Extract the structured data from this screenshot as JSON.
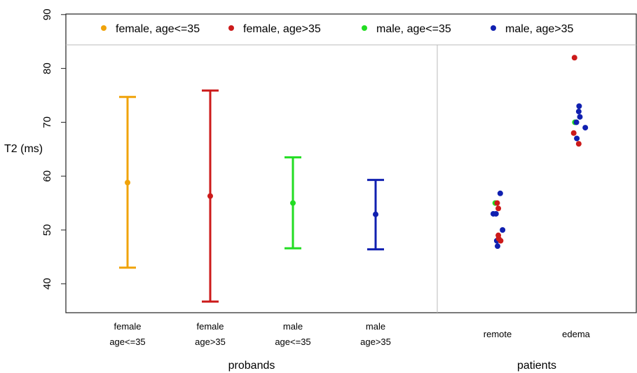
{
  "chart_data": {
    "type": "scatter",
    "ylabel": "T2 (ms)",
    "ylim": [
      36,
      90
    ],
    "yticks": [
      40,
      50,
      60,
      70,
      80,
      90
    ],
    "legend_position": "top",
    "groups": [
      {
        "name": "probands",
        "categories": [
          {
            "line1": "female",
            "line2": "age<=35"
          },
          {
            "line1": "female",
            "line2": "age>35"
          },
          {
            "line1": "male",
            "line2": "age<=35"
          },
          {
            "line1": "male",
            "line2": "age>35"
          }
        ]
      },
      {
        "name": "patients",
        "categories": [
          {
            "line1": "remote",
            "line2": ""
          },
          {
            "line1": "edema",
            "line2": ""
          }
        ]
      }
    ],
    "legend": [
      {
        "label": "female, age<=35",
        "color": "#f0a30a"
      },
      {
        "label": "female, age>35",
        "color": "#cc1a1a"
      },
      {
        "label": "male, age<=35",
        "color": "#22dd22"
      },
      {
        "label": "male, age>35",
        "color": "#1020b0"
      }
    ],
    "errorbars": [
      {
        "category": "female age<=35",
        "series": "female, age<=35",
        "mean": 58.8,
        "low": 43.0,
        "high": 74.7
      },
      {
        "category": "female age>35",
        "series": "female, age>35",
        "mean": 56.3,
        "low": 36.7,
        "high": 75.9
      },
      {
        "category": "male age<=35",
        "series": "male, age<=35",
        "mean": 55.0,
        "low": 46.6,
        "high": 63.5
      },
      {
        "category": "male age>35",
        "series": "male, age>35",
        "mean": 52.9,
        "low": 46.4,
        "high": 59.3
      }
    ],
    "points": [
      {
        "category": "remote",
        "series": "male, age<=35",
        "jitter": -0.3,
        "y": 55.0
      },
      {
        "category": "remote",
        "series": "female, age>35",
        "jitter": -0.05,
        "y": 55.0
      },
      {
        "category": "remote",
        "series": "male, age>35",
        "jitter": 0.35,
        "y": 56.8
      },
      {
        "category": "remote",
        "series": "female, age>35",
        "jitter": 0.1,
        "y": 54.0
      },
      {
        "category": "remote",
        "series": "male, age>35",
        "jitter": -0.55,
        "y": 53.0
      },
      {
        "category": "remote",
        "series": "male, age>35",
        "jitter": -0.2,
        "y": 53.0
      },
      {
        "category": "remote",
        "series": "male, age>35",
        "jitter": 0.65,
        "y": 50.0
      },
      {
        "category": "remote",
        "series": "female, age>35",
        "jitter": 0.1,
        "y": 49.0
      },
      {
        "category": "remote",
        "series": "male, age>35",
        "jitter": -0.1,
        "y": 48.0
      },
      {
        "category": "remote",
        "series": "female, age>35",
        "jitter": 0.15,
        "y": 48.4
      },
      {
        "category": "remote",
        "series": "female, age>35",
        "jitter": 0.4,
        "y": 48.0
      },
      {
        "category": "remote",
        "series": "male, age>35",
        "jitter": 0.0,
        "y": 47.0
      },
      {
        "category": "edema",
        "series": "female, age>35",
        "jitter": -0.2,
        "y": 82.0
      },
      {
        "category": "edema",
        "series": "male, age>35",
        "jitter": 0.4,
        "y": 73.0
      },
      {
        "category": "edema",
        "series": "male, age>35",
        "jitter": 0.35,
        "y": 72.0
      },
      {
        "category": "edema",
        "series": "male, age>35",
        "jitter": 0.5,
        "y": 71.0
      },
      {
        "category": "edema",
        "series": "male, age<=35",
        "jitter": -0.15,
        "y": 70.0
      },
      {
        "category": "edema",
        "series": "male, age>35",
        "jitter": 0.05,
        "y": 70.0
      },
      {
        "category": "edema",
        "series": "male, age>35",
        "jitter": 1.2,
        "y": 69.0
      },
      {
        "category": "edema",
        "series": "female, age>35",
        "jitter": -0.3,
        "y": 68.0
      },
      {
        "category": "edema",
        "series": "male, age>35",
        "jitter": 0.1,
        "y": 67.0
      },
      {
        "category": "edema",
        "series": "female, age>35",
        "jitter": 0.35,
        "y": 66.0
      }
    ]
  }
}
